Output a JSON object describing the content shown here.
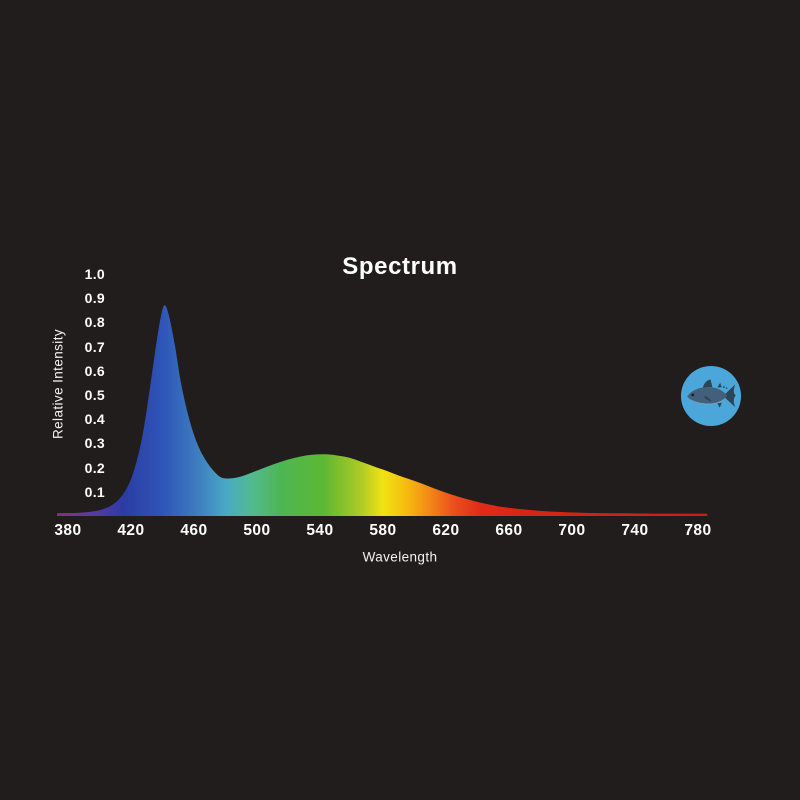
{
  "background_color": "#201d1c",
  "chart": {
    "text_color": "#ffffff"
  },
  "chart_data": {
    "type": "area",
    "title": "Spectrum",
    "xlabel": "Wavelength",
    "ylabel": "Relative Intensity",
    "xlim": [
      373,
      786
    ],
    "ylim": [
      0,
      1.0
    ],
    "grid": "off",
    "legend": "none",
    "x_ticks": [
      380,
      420,
      460,
      500,
      540,
      580,
      620,
      660,
      700,
      740,
      780
    ],
    "y_ticks": [
      0.1,
      0.2,
      0.3,
      0.4,
      0.5,
      0.6,
      0.7,
      0.8,
      0.9,
      1.0
    ],
    "series": [
      {
        "name": "Relative Intensity",
        "x": [
          373,
          385,
          395,
          403,
          410,
          416,
          421,
          426,
          430,
          434,
          438,
          441,
          444,
          448,
          452,
          457,
          462,
          467,
          472,
          477,
          482,
          488,
          495,
          503,
          511,
          519,
          527,
          535,
          543,
          551,
          559,
          567,
          575,
          583,
          591,
          599,
          607,
          615,
          623,
          631,
          639,
          647,
          655,
          665,
          675,
          685,
          695,
          710,
          730,
          755,
          786
        ],
        "y": [
          0.012,
          0.013,
          0.018,
          0.03,
          0.055,
          0.1,
          0.17,
          0.29,
          0.44,
          0.62,
          0.79,
          0.87,
          0.83,
          0.7,
          0.54,
          0.4,
          0.3,
          0.235,
          0.19,
          0.16,
          0.155,
          0.16,
          0.175,
          0.195,
          0.215,
          0.232,
          0.245,
          0.253,
          0.255,
          0.25,
          0.24,
          0.222,
          0.203,
          0.185,
          0.165,
          0.147,
          0.128,
          0.108,
          0.09,
          0.074,
          0.06,
          0.048,
          0.038,
          0.03,
          0.024,
          0.019,
          0.016,
          0.013,
          0.011,
          0.01,
          0.01
        ]
      }
    ],
    "gradient_stops": [
      {
        "wavelength": 373,
        "color": "#8d2a8f"
      },
      {
        "wavelength": 395,
        "color": "#5a3a9f"
      },
      {
        "wavelength": 415,
        "color": "#2c3ca3"
      },
      {
        "wavelength": 440,
        "color": "#2e55b7"
      },
      {
        "wavelength": 463,
        "color": "#3f7ec0"
      },
      {
        "wavelength": 481,
        "color": "#49aac5"
      },
      {
        "wavelength": 497,
        "color": "#52bb8f"
      },
      {
        "wavelength": 515,
        "color": "#4eb554"
      },
      {
        "wavelength": 542,
        "color": "#5cb832"
      },
      {
        "wavelength": 565,
        "color": "#aac927"
      },
      {
        "wavelength": 580,
        "color": "#f0e313"
      },
      {
        "wavelength": 595,
        "color": "#f6bb10"
      },
      {
        "wavelength": 610,
        "color": "#f28616"
      },
      {
        "wavelength": 625,
        "color": "#ea4f1c"
      },
      {
        "wavelength": 642,
        "color": "#e02b18"
      },
      {
        "wavelength": 680,
        "color": "#d52412"
      },
      {
        "wavelength": 786,
        "color": "#c92013"
      }
    ]
  },
  "icon": {
    "fish": {
      "label": "tuna fish badge",
      "circle_color": "#4ba6d9",
      "body_color": "#42607a",
      "fin_color": "#2c4559",
      "belly_color": "#8aa5b5",
      "eye_color": "#131f29"
    }
  }
}
